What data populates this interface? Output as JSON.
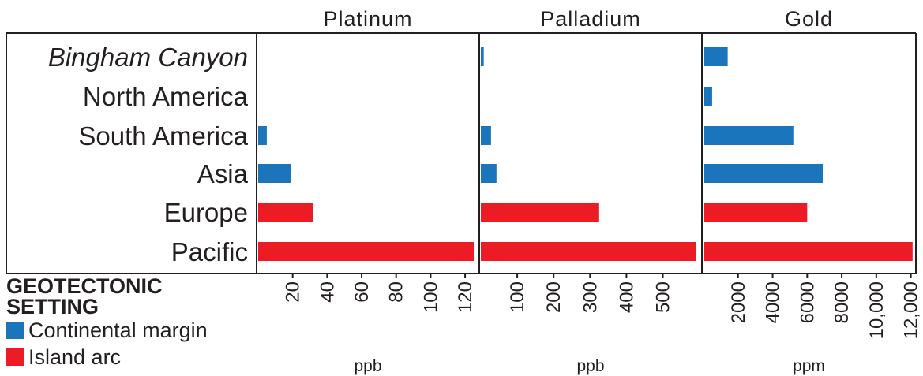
{
  "colors": {
    "continental": "#1b75bc",
    "island": "#ed1c24",
    "axis": "#231f20"
  },
  "legend": {
    "title": "GEOTECTONIC SETTING",
    "items": [
      {
        "label": "Continental margin",
        "color": "#1b75bc"
      },
      {
        "label": "Island arc",
        "color": "#ed1c24"
      }
    ]
  },
  "chart_data": {
    "type": "bar",
    "orientation": "horizontal",
    "categories": [
      "Bingham Canyon",
      "North America",
      "South America",
      "Asia",
      "Europe",
      "Pacific"
    ],
    "category_italic": [
      true,
      false,
      false,
      false,
      false,
      false
    ],
    "category_setting": [
      "continental",
      "continental",
      "continental",
      "continental",
      "island",
      "island"
    ],
    "panels": [
      {
        "title": "Platinum",
        "unit": "ppb",
        "ticks": [
          20,
          40,
          60,
          80,
          100,
          120
        ],
        "tick_labels": [
          "20",
          "40",
          "60",
          "80",
          "100",
          "120"
        ],
        "xlim": [
          0,
          125
        ],
        "values": [
          0,
          0,
          5,
          19,
          32,
          125
        ]
      },
      {
        "title": "Palladium",
        "unit": "ppb",
        "ticks": [
          100,
          200,
          300,
          400,
          500
        ],
        "tick_labels": [
          "100",
          "200",
          "300",
          "400",
          "500"
        ],
        "xlim": [
          0,
          590
        ],
        "values": [
          8,
          0,
          28,
          43,
          325,
          590
        ]
      },
      {
        "title": "Gold",
        "unit": "ppm",
        "ticks": [
          2000,
          4000,
          6000,
          8000,
          10000,
          12000
        ],
        "tick_labels": [
          "2000",
          "4000",
          "6000",
          "8000",
          "10,000",
          "12,000"
        ],
        "xlim": [
          0,
          12200
        ],
        "values": [
          1400,
          500,
          5200,
          6900,
          6000,
          12100
        ]
      }
    ]
  }
}
